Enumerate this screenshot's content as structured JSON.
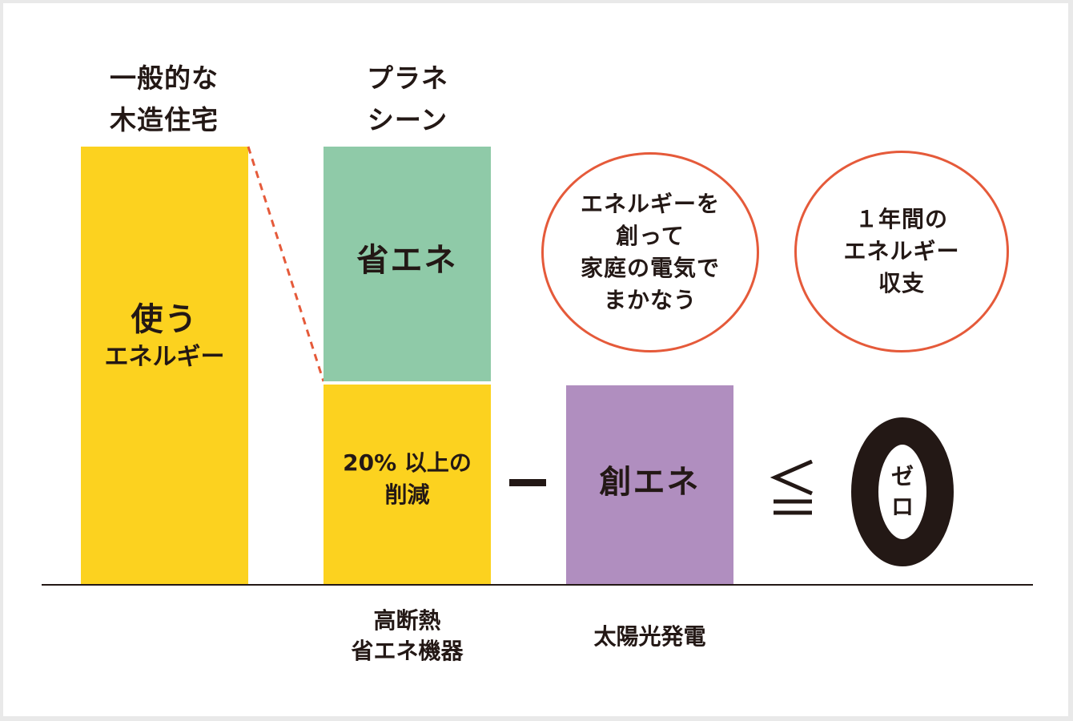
{
  "colors": {
    "yellow": "#fcd21f",
    "green": "#8fcaa8",
    "purple": "#b08ebf",
    "circle_border": "#e55a3a",
    "text": "#231815"
  },
  "columns": {
    "general": {
      "heading_line1": "一般的な",
      "heading_line2": "木造住宅",
      "bar_title": "使う",
      "bar_subtitle": "エネルギー"
    },
    "planesheen": {
      "heading_line1": "プラネ",
      "heading_line2": "シーン",
      "upper_label": "省エネ",
      "lower_line1": "20% 以上の",
      "lower_line2": "削減",
      "foot_line1": "高断熱",
      "foot_line2": "省エネ機器"
    },
    "creation": {
      "bar_label": "創エネ",
      "foot_label": "太陽光発電",
      "circle_line1": "エネルギーを",
      "circle_line2": "創って",
      "circle_line3": "家庭の電気で",
      "circle_line4": "まかなう"
    },
    "result": {
      "circle_line1": "１年間の",
      "circle_line2": "エネルギー",
      "circle_line3": "収支",
      "zero": "0",
      "zero_sub1": "ゼ",
      "zero_sub2": "ロ"
    }
  },
  "operators": {
    "minus": "－",
    "leq": "≦"
  }
}
